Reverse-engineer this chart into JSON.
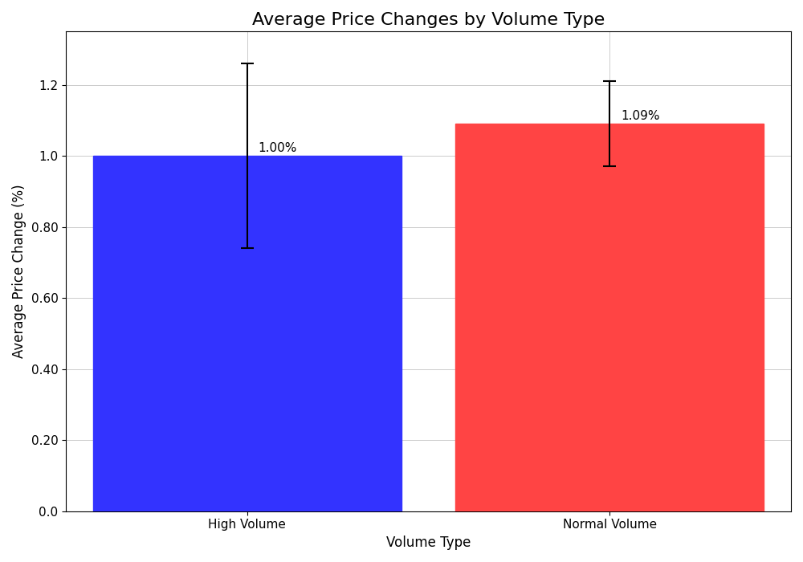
{
  "categories": [
    "High Volume",
    "Normal Volume"
  ],
  "values": [
    1.0,
    1.09
  ],
  "errors": [
    0.26,
    0.12
  ],
  "bar_colors": [
    "#3333ff",
    "#ff4444"
  ],
  "labels": [
    "1.00%",
    "1.09%"
  ],
  "title": "Average Price Changes by Volume Type",
  "xlabel": "Volume Type",
  "ylabel": "Average Price Change (%)",
  "ylim": [
    0.0,
    1.35
  ],
  "yticks": [
    0.0,
    0.2,
    0.4,
    0.6,
    0.8,
    1.0,
    1.2
  ],
  "background_color": "#ffffff",
  "grid_color": "#cccccc",
  "title_fontsize": 16,
  "axis_fontsize": 12,
  "tick_fontsize": 11,
  "bar_width": 0.85,
  "figsize": [
    10,
    7
  ]
}
